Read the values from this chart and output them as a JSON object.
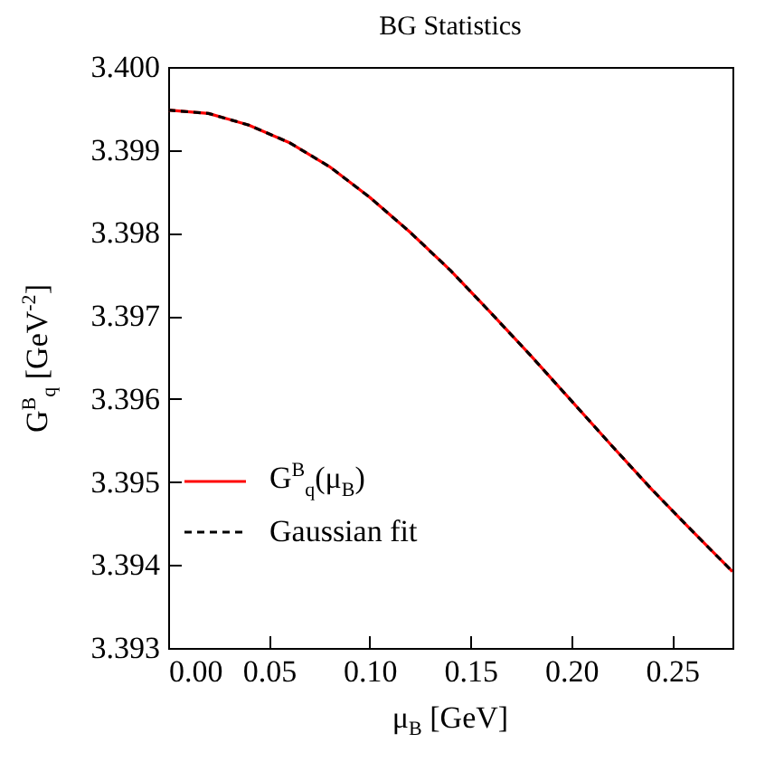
{
  "chart_data": {
    "type": "line",
    "title": "BG Statistics",
    "xlabel": "μ$_{B}$ [GeV]",
    "ylabel": "G$^{B}$$_{q}$ [GeV$^{-2}$]",
    "x": [
      0,
      0.02,
      0.04,
      0.06,
      0.08,
      0.1,
      0.12,
      0.14,
      0.16,
      0.18,
      0.2,
      0.22,
      0.24,
      0.26,
      0.28
    ],
    "series": [
      {
        "name": "G$^{B}$$_{q}$(μ$_{B}$)",
        "color": "#ff0000",
        "line_style": "solid",
        "values": [
          3.39948,
          3.39944,
          3.3993,
          3.39909,
          3.3988,
          3.39843,
          3.39801,
          3.39755,
          3.39704,
          3.39652,
          3.39598,
          3.39544,
          3.39491,
          3.39441,
          3.39392
        ]
      },
      {
        "name": "Gaussian fit",
        "color": "#000000",
        "line_style": "dashed",
        "values": [
          3.39948,
          3.39944,
          3.3993,
          3.39909,
          3.3988,
          3.39843,
          3.39801,
          3.39755,
          3.39704,
          3.39652,
          3.39598,
          3.39544,
          3.39491,
          3.39441,
          3.39392
        ]
      }
    ],
    "xlim": [
      0,
      0.28
    ],
    "ylim": [
      3.393,
      3.4
    ],
    "xticks": [
      {
        "value": 0,
        "label": "0.00"
      },
      {
        "value": 0.05,
        "label": "0.05"
      },
      {
        "value": 0.1,
        "label": "0.10"
      },
      {
        "value": 0.15,
        "label": "0.15"
      },
      {
        "value": 0.2,
        "label": "0.20"
      },
      {
        "value": 0.25,
        "label": "0.25"
      }
    ],
    "yticks": [
      {
        "value": 3.393,
        "label": "3.393"
      },
      {
        "value": 3.394,
        "label": "3.394"
      },
      {
        "value": 3.395,
        "label": "3.395"
      },
      {
        "value": 3.396,
        "label": "3.396"
      },
      {
        "value": 3.397,
        "label": "3.397"
      },
      {
        "value": 3.398,
        "label": "3.398"
      },
      {
        "value": 3.399,
        "label": "3.399"
      },
      {
        "value": 3.4,
        "label": "3.400"
      }
    ],
    "legend": "bottom left",
    "grid": false
  }
}
